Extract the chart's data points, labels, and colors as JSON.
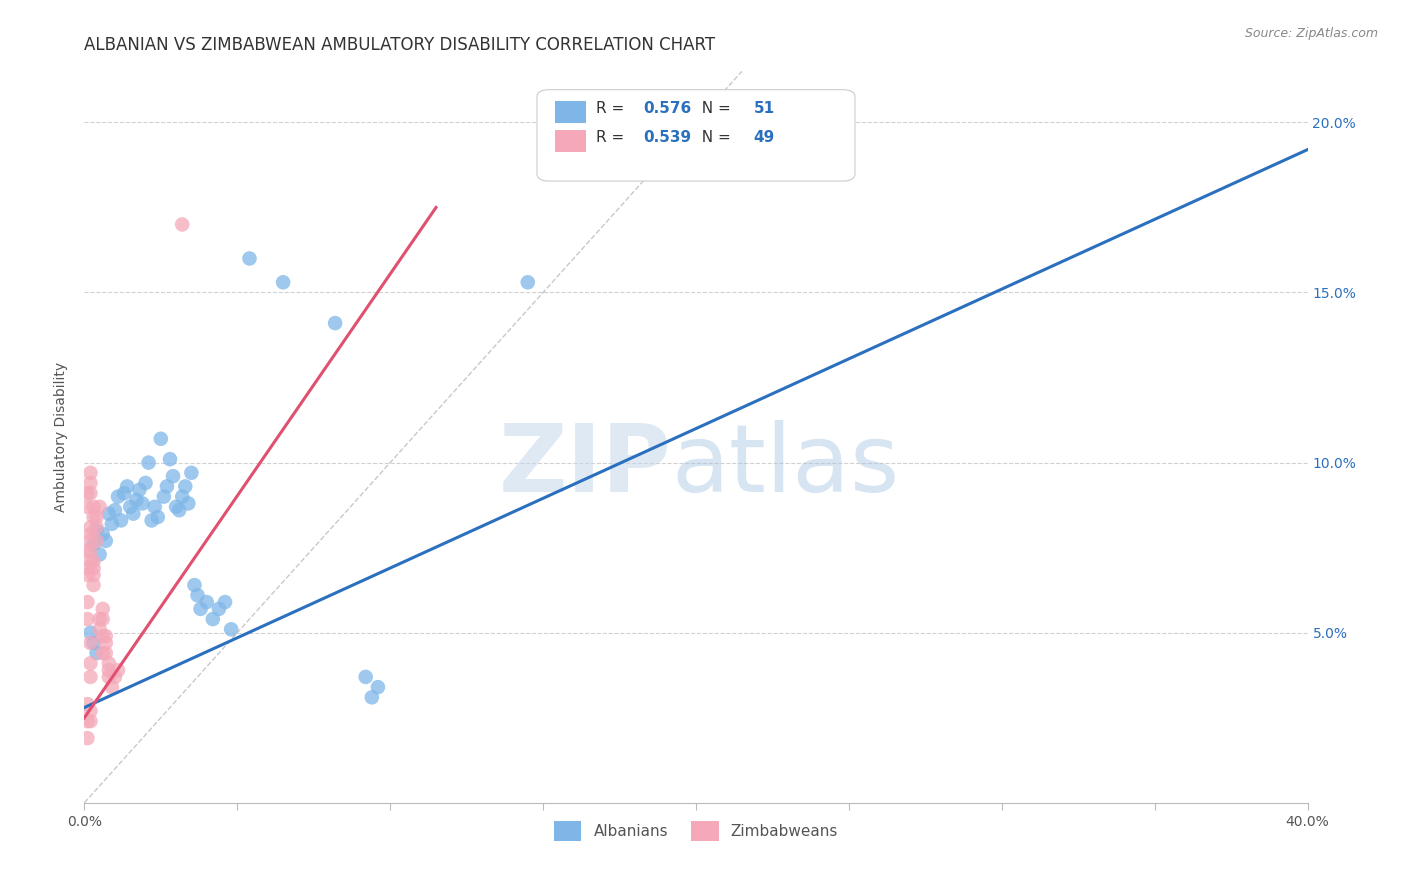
{
  "title": "ALBANIAN VS ZIMBABWEAN AMBULATORY DISABILITY CORRELATION CHART",
  "source": "Source: ZipAtlas.com",
  "xlabel": "",
  "ylabel": "Ambulatory Disability",
  "xlim": [
    0.0,
    0.4
  ],
  "ylim": [
    0.0,
    0.215
  ],
  "xticks": [
    0.0,
    0.05,
    0.1,
    0.15,
    0.2,
    0.25,
    0.3,
    0.35,
    0.4
  ],
  "xtick_labels": [
    "0.0%",
    "",
    "",
    "",
    "",
    "",
    "",
    "",
    "40.0%"
  ],
  "yticks_right": [
    0.05,
    0.1,
    0.15,
    0.2
  ],
  "ytick_labels_right": [
    "5.0%",
    "10.0%",
    "15.0%",
    "20.0%"
  ],
  "albanian_color": "#7EB6E8",
  "zimbabwean_color": "#F4A8B8",
  "albanian_line_color": "#2B6FBF",
  "zimbabwean_line_color": "#E05070",
  "albanian_R": "0.576",
  "albanian_N": "51",
  "zimbabwean_R": "0.539",
  "zimbabwean_N": "49",
  "legend_albanian": "Albanians",
  "legend_zimbabwean": "Zimbabweans",
  "watermark_zip": "ZIP",
  "watermark_atlas": "atlas",
  "background_color": "#FFFFFF",
  "grid_color": "#CCCCCC",
  "title_fontsize": 12,
  "axis_label_fontsize": 10,
  "tick_fontsize": 10,
  "albanian_scatter": [
    [
      0.003,
      0.076
    ],
    [
      0.004,
      0.08
    ],
    [
      0.005,
      0.073
    ],
    [
      0.006,
      0.079
    ],
    [
      0.007,
      0.077
    ],
    [
      0.008,
      0.085
    ],
    [
      0.009,
      0.082
    ],
    [
      0.01,
      0.086
    ],
    [
      0.011,
      0.09
    ],
    [
      0.012,
      0.083
    ],
    [
      0.013,
      0.091
    ],
    [
      0.014,
      0.093
    ],
    [
      0.015,
      0.087
    ],
    [
      0.016,
      0.085
    ],
    [
      0.017,
      0.089
    ],
    [
      0.018,
      0.092
    ],
    [
      0.019,
      0.088
    ],
    [
      0.02,
      0.094
    ],
    [
      0.021,
      0.1
    ],
    [
      0.022,
      0.083
    ],
    [
      0.023,
      0.087
    ],
    [
      0.024,
      0.084
    ],
    [
      0.025,
      0.107
    ],
    [
      0.026,
      0.09
    ],
    [
      0.027,
      0.093
    ],
    [
      0.028,
      0.101
    ],
    [
      0.029,
      0.096
    ],
    [
      0.03,
      0.087
    ],
    [
      0.031,
      0.086
    ],
    [
      0.032,
      0.09
    ],
    [
      0.033,
      0.093
    ],
    [
      0.034,
      0.088
    ],
    [
      0.035,
      0.097
    ],
    [
      0.036,
      0.064
    ],
    [
      0.037,
      0.061
    ],
    [
      0.038,
      0.057
    ],
    [
      0.04,
      0.059
    ],
    [
      0.042,
      0.054
    ],
    [
      0.044,
      0.057
    ],
    [
      0.046,
      0.059
    ],
    [
      0.048,
      0.051
    ],
    [
      0.003,
      0.047
    ],
    [
      0.004,
      0.044
    ],
    [
      0.002,
      0.05
    ],
    [
      0.065,
      0.153
    ],
    [
      0.082,
      0.141
    ],
    [
      0.054,
      0.16
    ],
    [
      0.145,
      0.153
    ],
    [
      0.092,
      0.037
    ],
    [
      0.094,
      0.031
    ],
    [
      0.096,
      0.034
    ]
  ],
  "zimbabwean_scatter": [
    [
      0.001,
      0.069
    ],
    [
      0.001,
      0.074
    ],
    [
      0.001,
      0.067
    ],
    [
      0.002,
      0.071
    ],
    [
      0.002,
      0.079
    ],
    [
      0.002,
      0.077
    ],
    [
      0.002,
      0.074
    ],
    [
      0.002,
      0.081
    ],
    [
      0.003,
      0.064
    ],
    [
      0.003,
      0.069
    ],
    [
      0.003,
      0.067
    ],
    [
      0.003,
      0.071
    ],
    [
      0.004,
      0.077
    ],
    [
      0.004,
      0.081
    ],
    [
      0.004,
      0.084
    ],
    [
      0.005,
      0.087
    ],
    [
      0.005,
      0.054
    ],
    [
      0.005,
      0.051
    ],
    [
      0.006,
      0.054
    ],
    [
      0.006,
      0.057
    ],
    [
      0.006,
      0.049
    ],
    [
      0.006,
      0.044
    ],
    [
      0.007,
      0.047
    ],
    [
      0.007,
      0.044
    ],
    [
      0.007,
      0.049
    ],
    [
      0.008,
      0.041
    ],
    [
      0.008,
      0.039
    ],
    [
      0.008,
      0.037
    ],
    [
      0.009,
      0.034
    ],
    [
      0.01,
      0.037
    ],
    [
      0.011,
      0.039
    ],
    [
      0.001,
      0.091
    ],
    [
      0.002,
      0.094
    ],
    [
      0.001,
      0.087
    ],
    [
      0.001,
      0.059
    ],
    [
      0.001,
      0.054
    ],
    [
      0.002,
      0.047
    ],
    [
      0.002,
      0.041
    ],
    [
      0.002,
      0.037
    ],
    [
      0.001,
      0.024
    ],
    [
      0.001,
      0.019
    ],
    [
      0.001,
      0.029
    ],
    [
      0.002,
      0.027
    ],
    [
      0.002,
      0.024
    ],
    [
      0.032,
      0.17
    ],
    [
      0.002,
      0.097
    ],
    [
      0.002,
      0.091
    ],
    [
      0.003,
      0.087
    ],
    [
      0.003,
      0.084
    ]
  ],
  "albanian_line": [
    [
      0.0,
      0.028
    ],
    [
      0.4,
      0.192
    ]
  ],
  "zimbabwean_line": [
    [
      0.0,
      0.025
    ],
    [
      0.115,
      0.175
    ]
  ],
  "diagonal_line": [
    [
      0.0,
      0.0
    ],
    [
      0.215,
      0.215
    ]
  ]
}
